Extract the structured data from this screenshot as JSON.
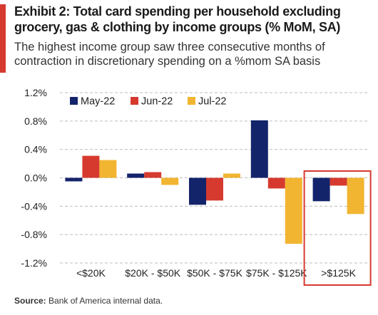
{
  "title": "Exhibit 2: Total card spending per household excluding grocery, gas & clothing by income groups (% MoM, SA)",
  "subtitle": "The highest income group saw three consecutive months of contraction in discretionary spending on a %mom SA basis",
  "source_label": "Source:",
  "source_text": "Bank of America internal data.",
  "colors": {
    "accent": "#d63a2f",
    "highlight_box": "#d63a2f"
  },
  "chart_data": {
    "type": "bar",
    "categories": [
      "<$20K",
      "$20K - $50K",
      "$50K - $75K",
      "$75K - $125K",
      ">$125K"
    ],
    "series": [
      {
        "name": "May-22",
        "color": "#14246b",
        "values": [
          -0.05,
          0.06,
          -0.38,
          0.81,
          -0.33
        ]
      },
      {
        "name": "Jun-22",
        "color": "#d63a2f",
        "values": [
          0.31,
          0.08,
          -0.32,
          -0.15,
          -0.11
        ]
      },
      {
        "name": "Jul-22",
        "color": "#f2b531",
        "values": [
          0.25,
          -0.1,
          0.06,
          -0.93,
          -0.51
        ]
      }
    ],
    "ylim": [
      -1.2,
      1.2
    ],
    "yticks": [
      1.2,
      0.8,
      0.4,
      0.0,
      -0.4,
      -0.8,
      -1.2
    ],
    "ytick_labels": [
      "1.2%",
      "0.8%",
      "0.4%",
      "0.0%",
      "-0.4%",
      "-0.8%",
      "-1.2%"
    ],
    "grid": "horizontal dashed",
    "legend": "top",
    "highlight_category": ">$125K"
  }
}
